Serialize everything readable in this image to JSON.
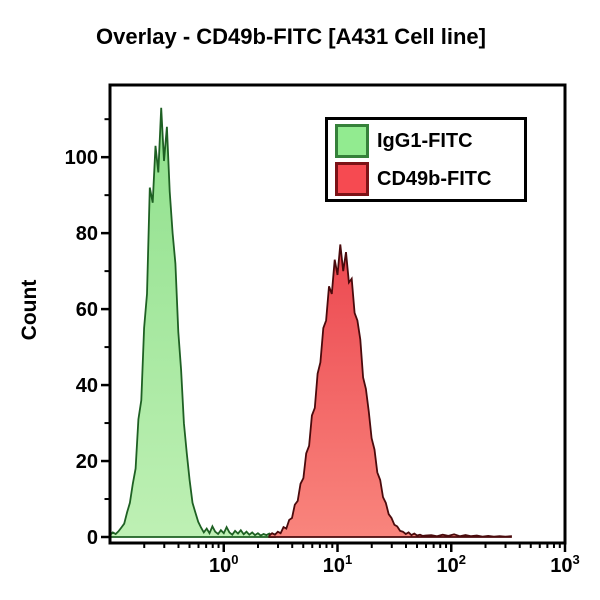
{
  "header": {
    "title": "Overlay - CD49b-FITC [A431 Cell line]"
  },
  "legend": {
    "items": [
      {
        "label": "IgG1-FITC",
        "swatch_fill": "#92EB90",
        "swatch_border": "#35813A"
      },
      {
        "label": "CD49b-FITC",
        "swatch_fill": "#F64A51",
        "swatch_border": "#7C1216"
      }
    ]
  },
  "chart_data": {
    "type": "area",
    "subtype": "flow-cytometry-histogram-overlay",
    "title": "Overlay - CD49b-FITC [A431 Cell line]",
    "xlabel": "",
    "ylabel": "Count",
    "grid": false,
    "legend_position": "top-right-inside",
    "x_scale": "log10",
    "x_range_log10": [
      -1,
      3
    ],
    "ylim": [
      0,
      119
    ],
    "y_major_ticks": [
      0,
      20,
      40,
      60,
      80,
      100
    ],
    "y_minor_ticks": [
      10,
      30,
      50,
      70,
      90,
      110
    ],
    "x_major_ticks": [
      {
        "log10": 0,
        "base": "10",
        "exp": "0"
      },
      {
        "log10": 1,
        "base": "10",
        "exp": "1"
      },
      {
        "log10": 2,
        "base": "10",
        "exp": "2"
      },
      {
        "log10": 3,
        "base": "10",
        "exp": "3"
      }
    ],
    "axis_color": "#000000",
    "series": [
      {
        "name": "IgG1-FITC",
        "peak_log10_x": -0.55,
        "peak_count": 113,
        "fill_top": "#8FE08C",
        "fill_bottom": "#BEF0B4",
        "stroke": "#1E6023",
        "log10_x": [
          -1,
          -0.975,
          -0.95,
          -0.925,
          -0.9,
          -0.875,
          -0.85,
          -0.825,
          -0.8,
          -0.775,
          -0.75,
          -0.725,
          -0.7,
          -0.675,
          -0.65,
          -0.625,
          -0.6,
          -0.575,
          -0.55,
          -0.525,
          -0.5,
          -0.475,
          -0.45,
          -0.425,
          -0.4,
          -0.375,
          -0.35,
          -0.325,
          -0.3,
          -0.275,
          -0.25,
          -0.225,
          -0.2,
          -0.175,
          -0.15,
          -0.125,
          -0.1,
          -0.075,
          -0.05,
          -0.025,
          0,
          0.025,
          0.05,
          0.075,
          0.1,
          0.125,
          0.15,
          0.175,
          0.2,
          0.225,
          0.25,
          0.275,
          0.3,
          0.325,
          0.35,
          0.375,
          0.4,
          0.425,
          0.45
        ],
        "counts": [
          0.5,
          1.2,
          0.8,
          1.5,
          2.5,
          3.5,
          6.5,
          9,
          14,
          18,
          31,
          36,
          55,
          64,
          92,
          88,
          103,
          96,
          113,
          99,
          108,
          91,
          80,
          72,
          54,
          44,
          30,
          22,
          15,
          9,
          6.5,
          4,
          2.5,
          1.2,
          2.2,
          1,
          2.8,
          1.4,
          0.8,
          1.8,
          1,
          2.6,
          1.2,
          0.6,
          1.6,
          0.9,
          1.8,
          0.7,
          1.4,
          0.6,
          1.2,
          0.5,
          1,
          0.4,
          0.8,
          0.5,
          0.9,
          0.4,
          0.7
        ]
      },
      {
        "name": "CD49b-FITC",
        "peak_log10_x": 1.03,
        "peak_count": 77,
        "fill_top": "#EC4850",
        "fill_bottom": "#F9857D",
        "stroke": "#4A0A0C",
        "log10_x": [
          0.4,
          0.425,
          0.45,
          0.475,
          0.5,
          0.525,
          0.55,
          0.575,
          0.6,
          0.625,
          0.65,
          0.675,
          0.7,
          0.725,
          0.75,
          0.775,
          0.8,
          0.825,
          0.85,
          0.875,
          0.9,
          0.925,
          0.95,
          0.975,
          1,
          1.025,
          1.05,
          1.075,
          1.1,
          1.125,
          1.15,
          1.175,
          1.2,
          1.225,
          1.25,
          1.275,
          1.3,
          1.325,
          1.35,
          1.375,
          1.4,
          1.425,
          1.45,
          1.475,
          1.5,
          1.525,
          1.55,
          1.575,
          1.6,
          1.625,
          1.65,
          1.675,
          1.7,
          1.725,
          1.75,
          1.775,
          1.825,
          1.875,
          1.925,
          1.975,
          2.025,
          2.075,
          2.125,
          2.175,
          2.225,
          2.275,
          2.325,
          2.375,
          2.425,
          2.475,
          2.525
        ],
        "counts": [
          0.4,
          1,
          0.6,
          1.4,
          1,
          2.6,
          2.2,
          4.5,
          5,
          8.5,
          9.5,
          14,
          15.5,
          22,
          24,
          32,
          34,
          43,
          46,
          55,
          57,
          66,
          64,
          73,
          69,
          77,
          70,
          75,
          67,
          68,
          59,
          57,
          52,
          42,
          39,
          33,
          26,
          23,
          17,
          15,
          10.5,
          9,
          6,
          5,
          3.2,
          2.8,
          1.6,
          1.4,
          0.8,
          1.2,
          0.5,
          0.9,
          0.4,
          0.6,
          0.3,
          0.4,
          0.5,
          0.2,
          0.6,
          0.3,
          0.7,
          0.2,
          0.5,
          0.2,
          0.4,
          0.1,
          0.3,
          0.1,
          0.25,
          0.1,
          0.2
        ]
      }
    ]
  }
}
